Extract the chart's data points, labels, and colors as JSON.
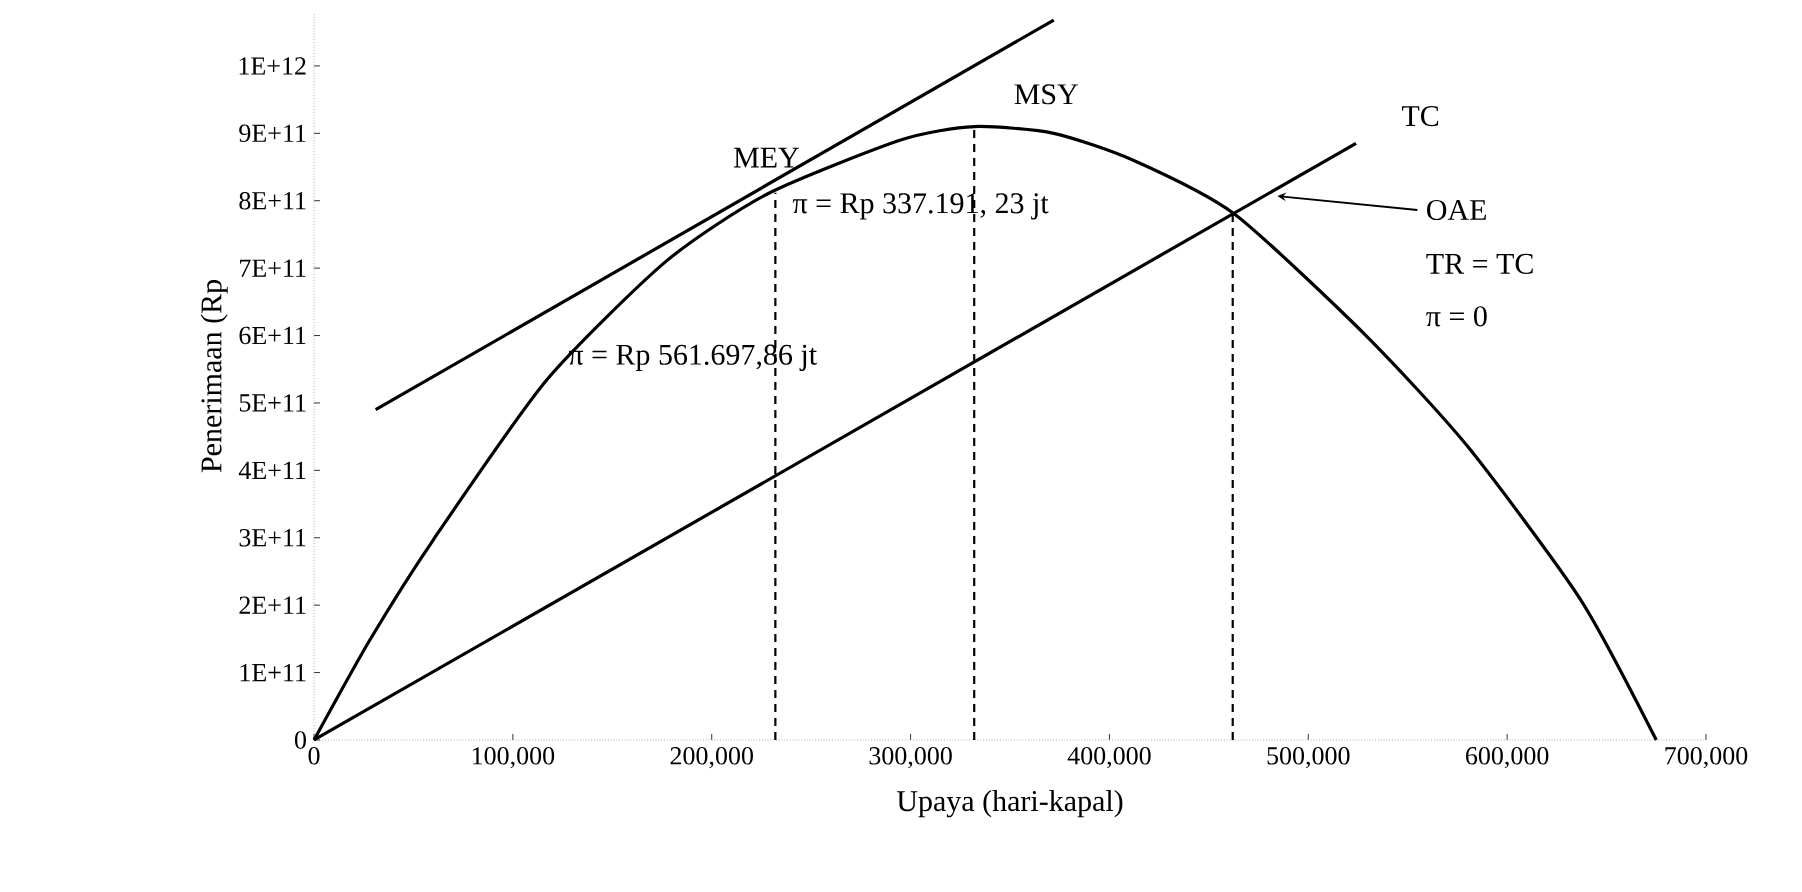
{
  "chart_data": {
    "type": "line",
    "xlabel": "Upaya (hari-kapal)",
    "ylabel": "Penerimaan (Rp",
    "xlim": [
      0,
      700000
    ],
    "ylim": [
      0,
      1080000000000
    ],
    "xticks": [
      0,
      {
        "value": 100000,
        "label": "100,000"
      },
      {
        "value": 200000,
        "label": "200,000"
      },
      {
        "value": 300000,
        "label": "300,000"
      },
      {
        "value": 400000,
        "label": "400,000"
      },
      {
        "value": 500000,
        "label": "500,000"
      },
      {
        "value": 600000,
        "label": "600,000"
      },
      {
        "value": 700000,
        "label": "700,000"
      }
    ],
    "yticks": [
      0,
      {
        "value": 100000000000,
        "label": "1E+11"
      },
      {
        "value": 200000000000,
        "label": "2E+11"
      },
      {
        "value": 300000000000,
        "label": "3E+11"
      },
      {
        "value": 400000000000,
        "label": "4E+11"
      },
      {
        "value": 500000000000,
        "label": "5E+11"
      },
      {
        "value": 600000000000,
        "label": "6E+11"
      },
      {
        "value": 700000000000,
        "label": "7E+11"
      },
      {
        "value": 800000000000,
        "label": "8E+11"
      },
      {
        "value": 900000000000,
        "label": "9E+11"
      },
      {
        "value": 1000000000000,
        "label": "1E+12"
      }
    ],
    "grid": false,
    "marker": "none",
    "series": [
      {
        "color": "#000000",
        "line_style": "solid",
        "x": [
          0,
          28000,
          60000,
          117000,
          177000,
          228000,
          295000,
          332000,
          372000,
          412000,
          463000,
          529000,
          580000,
          637000,
          675000
        ],
        "values": [
          0,
          148000000000,
          297000000000,
          534000000000,
          710000000000,
          810000000000,
          890000000000,
          910000000000,
          900000000000,
          860000000000,
          780000000000,
          600000000000,
          436000000000,
          208000000000,
          0
        ]
      },
      {
        "color": "#000000",
        "line_style": "solid",
        "x": [
          0,
          524000
        ],
        "values": [
          0,
          885000000000
        ]
      },
      {
        "color": "#000000",
        "line_style": "solid",
        "x": [
          31000,
          372000
        ],
        "values": [
          490000000000,
          1068000000000
        ]
      },
      {
        "color": "#000000",
        "line_style": "dashed",
        "x": [
          232000,
          232000
        ],
        "values": [
          0,
          812000000000
        ]
      },
      {
        "color": "#000000",
        "line_style": "dashed",
        "x": [
          332000,
          332000
        ],
        "values": [
          0,
          910000000000
        ]
      },
      {
        "color": "#000000",
        "line_style": "dashed",
        "x": [
          462000,
          462000
        ],
        "values": [
          0,
          780000000000
        ]
      }
    ],
    "annotations": [
      "MEY",
      "MSY",
      "TC",
      "OAE",
      "TR = TC",
      "π = 0",
      "π = Rp 337.191, 23 jt",
      "π = Rp 561.697,86 jt"
    ]
  }
}
